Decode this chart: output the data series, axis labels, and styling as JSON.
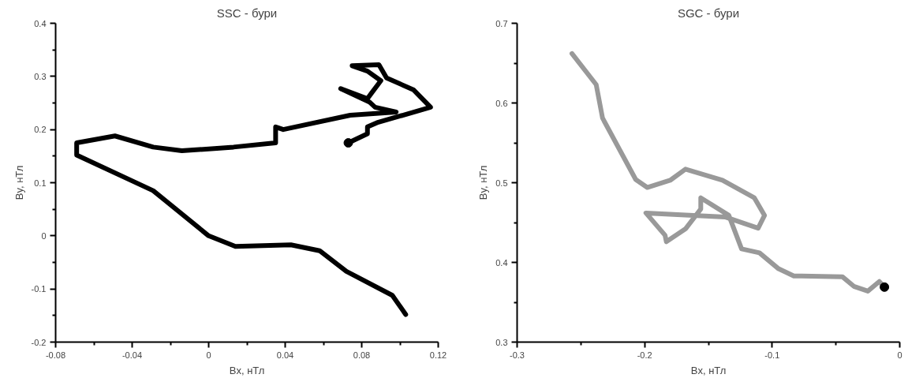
{
  "chart_data": [
    {
      "type": "line",
      "title": "SSC - бури",
      "xlabel": "Bx, нТл",
      "ylabel": "By, нТл",
      "grid": false,
      "line_style": "solid",
      "xlim": [
        -0.08,
        0.12
      ],
      "ylim": [
        -0.2,
        0.4
      ],
      "xticks": [
        -0.08,
        {
          "value": -0.06,
          "label": null
        },
        -0.04,
        {
          "value": -0.02,
          "label": null
        },
        0,
        {
          "value": 0.02,
          "label": null
        },
        0.04,
        {
          "value": 0.06,
          "label": null
        },
        0.08,
        {
          "value": 0.1,
          "label": null
        },
        0.12
      ],
      "yticks": [
        -0.2,
        {
          "value": -0.15,
          "label": null
        },
        -0.1,
        {
          "value": -0.05,
          "label": null
        },
        0,
        {
          "value": 0.05,
          "label": null
        },
        0.1,
        {
          "value": 0.15,
          "label": null
        },
        0.2,
        {
          "value": 0.25,
          "label": null
        },
        0.3,
        {
          "value": 0.35,
          "label": null
        },
        0.4
      ],
      "series": [
        {
          "color": "#000000",
          "x": [
            0.073,
            0.083,
            0.083,
            0.088,
            0.116,
            0.107,
            0.093,
            0.089,
            0.075,
            0.083,
            0.09,
            0.085,
            0.083,
            0.069,
            0.084,
            0.087,
            0.098,
            0.074,
            0.039,
            0.035,
            0.035,
            0.013,
            -0.014,
            -0.029,
            -0.049,
            -0.069,
            -0.069,
            -0.029,
            0,
            0.014,
            0.043,
            0.058,
            0.072,
            0.096,
            0.103
          ],
          "values": [
            0.175,
            0.192,
            0.205,
            0.213,
            0.242,
            0.275,
            0.297,
            0.322,
            0.32,
            0.31,
            0.292,
            0.268,
            0.258,
            0.277,
            0.252,
            0.242,
            0.233,
            0.227,
            0.2,
            0.205,
            0.175,
            0.167,
            0.16,
            0.167,
            0.188,
            0.175,
            0.152,
            0.085,
            0,
            -0.02,
            -0.017,
            -0.028,
            -0.067,
            -0.112,
            -0.148
          ]
        },
        {
          "type": "scatter",
          "marker": "circle",
          "color": "#000000",
          "x": [
            0.073
          ],
          "values": [
            0.175
          ]
        }
      ]
    },
    {
      "type": "line",
      "title": "SGC - бури",
      "xlabel": "Bx, нТл",
      "ylabel": "By, нТл",
      "grid": false,
      "line_style": "solid",
      "xlim": [
        -0.3,
        0
      ],
      "ylim": [
        0.3,
        0.7
      ],
      "xticks": [
        -0.3,
        {
          "value": -0.25,
          "label": null
        },
        -0.2,
        {
          "value": -0.15,
          "label": null
        },
        -0.1,
        {
          "value": -0.05,
          "label": null
        },
        0
      ],
      "yticks": [
        0.3,
        {
          "value": 0.35,
          "label": null
        },
        0.4,
        {
          "value": 0.45,
          "label": null
        },
        0.5,
        {
          "value": 0.55,
          "label": null
        },
        0.6,
        {
          "value": 0.65,
          "label": null
        },
        0.7
      ],
      "series": [
        {
          "color": "#999999",
          "x": [
            -0.012,
            -0.016,
            -0.025,
            -0.036,
            -0.045,
            -0.083,
            -0.095,
            -0.11,
            -0.124,
            -0.134,
            -0.156,
            -0.156,
            -0.168,
            -0.183,
            -0.184,
            -0.199,
            -0.137,
            -0.111,
            -0.106,
            -0.114,
            -0.139,
            -0.168,
            -0.18,
            -0.198,
            -0.207,
            -0.233,
            -0.238,
            -0.257
          ],
          "values": [
            0.369,
            0.376,
            0.364,
            0.37,
            0.382,
            0.383,
            0.392,
            0.412,
            0.417,
            0.459,
            0.481,
            0.467,
            0.442,
            0.426,
            0.434,
            0.462,
            0.457,
            0.443,
            0.459,
            0.481,
            0.503,
            0.517,
            0.503,
            0.494,
            0.504,
            0.581,
            0.623,
            0.662
          ]
        },
        {
          "type": "scatter",
          "marker": "circle",
          "color": "#000000",
          "x": [
            -0.012
          ],
          "values": [
            0.369
          ]
        }
      ]
    }
  ]
}
